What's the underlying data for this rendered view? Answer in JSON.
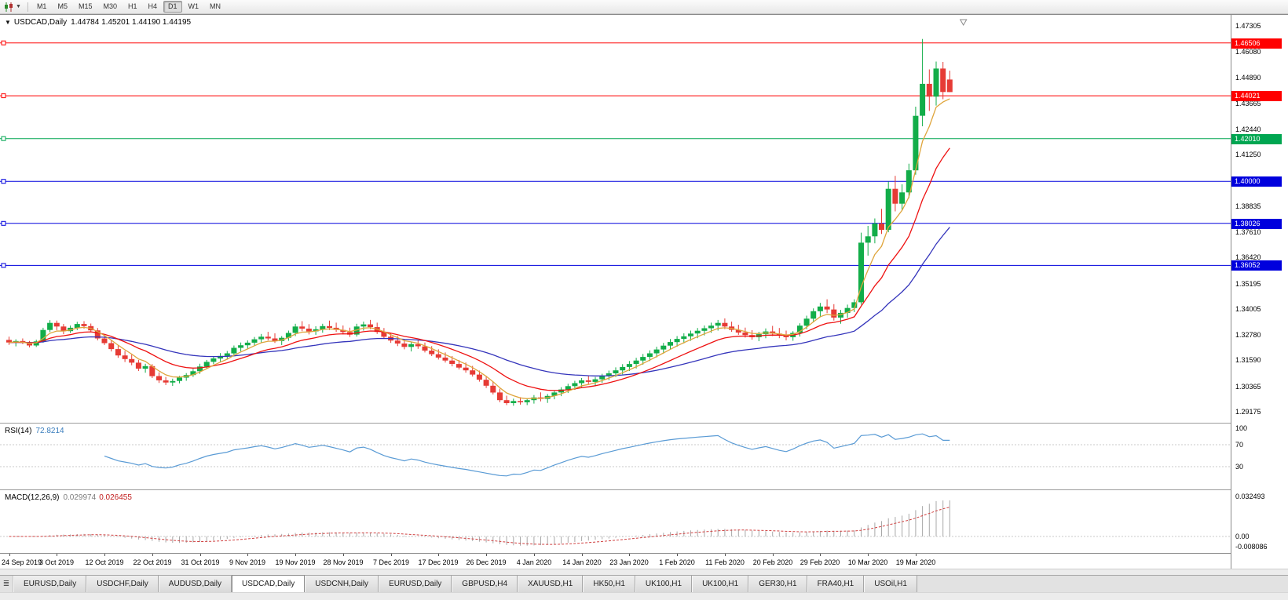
{
  "toolbar": {
    "timeframes": [
      "M1",
      "M5",
      "M15",
      "M30",
      "H1",
      "H4",
      "D1",
      "W1",
      "MN"
    ],
    "active_timeframe": "D1",
    "chart_type_icon": "candlestick-chart-icon",
    "dropdown_icon": "chevron-down-icon"
  },
  "chart": {
    "symbol_period": "USDCAD,Daily",
    "ohlc": "1.44784 1.45201 1.44190 1.44195"
  },
  "indicators": {
    "rsi": {
      "name": "RSI(14)",
      "value": "72.8214",
      "scale": [
        "100",
        "70",
        "30"
      ],
      "level_lines": [
        70,
        30
      ]
    },
    "macd": {
      "name": "MACD(12,26,9)",
      "value_main": "0.029974",
      "value_signal": "0.026455",
      "scale": [
        "0.032493",
        "0.00",
        "-0.008086"
      ]
    }
  },
  "tabbar": {
    "tabs": [
      "EURUSD,Daily",
      "USDCHF,Daily",
      "AUDUSD,Daily",
      "USDCAD,Daily",
      "USDCNH,Daily",
      "EURUSD,Daily",
      "GBPUSD,H4",
      "XAUUSD,H1",
      "HK50,H1",
      "UK100,H1",
      "UK100,H1",
      "GER30,H1",
      "FRA40,H1",
      "USOil,H1"
    ],
    "active_index": 3
  },
  "chart_data": {
    "type": "candlestick",
    "symbol": "USDCAD",
    "timeframe": "Daily",
    "current_bar": {
      "open": 1.44784,
      "high": 1.45201,
      "low": 1.4419,
      "close": 1.44195
    },
    "y_axis": {
      "min": 1.29175,
      "max": 1.47305,
      "tick_labels": [
        "1.47305",
        "1.46080",
        "1.44890",
        "1.43665",
        "1.42440",
        "1.41250",
        "1.38835",
        "1.37610",
        "1.36420",
        "1.35195",
        "1.34005",
        "1.32780",
        "1.31590",
        "1.30365",
        "1.29175"
      ]
    },
    "x_labels": [
      "24 Sep 2019",
      "3 Oct 2019",
      "12 Oct 2019",
      "22 Oct 2019",
      "31 Oct 2019",
      "9 Nov 2019",
      "19 Nov 2019",
      "28 Nov 2019",
      "7 Dec 2019",
      "17 Dec 2019",
      "26 Dec 2019",
      "4 Jan 2020",
      "14 Jan 2020",
      "23 Jan 2020",
      "1 Feb 2020",
      "11 Feb 2020",
      "20 Feb 2020",
      "29 Feb 2020",
      "10 Mar 2020",
      "19 Mar 2020"
    ],
    "label_every_n_bars": 7,
    "levels": [
      {
        "price": 1.46506,
        "label": "1.46506",
        "color": "#ff0000"
      },
      {
        "price": 1.44021,
        "label": "1.44021",
        "color": "#ff0000"
      },
      {
        "price": 1.4201,
        "label": "1.42010",
        "color": "#00a651"
      },
      {
        "price": 1.4,
        "label": "1.40000",
        "color": "#0000dd"
      },
      {
        "price": 1.38026,
        "label": "1.38026",
        "color": "#0000dd"
      },
      {
        "price": 1.36052,
        "label": "1.36052",
        "color": "#0000dd"
      }
    ],
    "moving_averages": [
      {
        "name": "fast",
        "period": 5,
        "color": "#dfa53c"
      },
      {
        "name": "mid",
        "period": 13,
        "color": "#ee1111"
      },
      {
        "name": "slow",
        "period": 34,
        "color": "#3434bb"
      }
    ],
    "colors": {
      "up": "#12ad49",
      "down": "#e63b35",
      "rsi_line": "#5a9bd5",
      "macd_histogram": "#a8a8a8",
      "macd_signal": "#d04040",
      "grid_dash": "#c9c9c9"
    },
    "candles": [
      [
        1.3255,
        1.327,
        1.3232,
        1.3243
      ],
      [
        1.3243,
        1.3258,
        1.3225,
        1.325
      ],
      [
        1.325,
        1.3262,
        1.3236,
        1.3241
      ],
      [
        1.3241,
        1.325,
        1.322,
        1.3229
      ],
      [
        1.3229,
        1.3256,
        1.3222,
        1.3248
      ],
      [
        1.3248,
        1.3312,
        1.3242,
        1.3302
      ],
      [
        1.3302,
        1.3348,
        1.3292,
        1.3335
      ],
      [
        1.3335,
        1.3346,
        1.3301,
        1.3318
      ],
      [
        1.3318,
        1.333,
        1.3282,
        1.3296
      ],
      [
        1.3296,
        1.3323,
        1.3288,
        1.3312
      ],
      [
        1.3312,
        1.334,
        1.3301,
        1.333
      ],
      [
        1.333,
        1.3343,
        1.3308,
        1.332
      ],
      [
        1.332,
        1.3332,
        1.3291,
        1.33
      ],
      [
        1.33,
        1.3311,
        1.3253,
        1.3262
      ],
      [
        1.3262,
        1.3278,
        1.3231,
        1.324
      ],
      [
        1.324,
        1.3253,
        1.3201,
        1.3212
      ],
      [
        1.3212,
        1.3229,
        1.3171,
        1.3182
      ],
      [
        1.3182,
        1.3203,
        1.3151,
        1.3165
      ],
      [
        1.3165,
        1.3186,
        1.3136,
        1.3148
      ],
      [
        1.3148,
        1.3161,
        1.3109,
        1.312
      ],
      [
        1.312,
        1.3143,
        1.3101,
        1.3132
      ],
      [
        1.3132,
        1.3141,
        1.3076,
        1.3085
      ],
      [
        1.3085,
        1.3103,
        1.3053,
        1.3065
      ],
      [
        1.3065,
        1.3081,
        1.3043,
        1.3055
      ],
      [
        1.3055,
        1.3073,
        1.3039,
        1.3062
      ],
      [
        1.3062,
        1.3086,
        1.3051,
        1.3078
      ],
      [
        1.3078,
        1.3099,
        1.3063,
        1.309
      ],
      [
        1.309,
        1.3119,
        1.3081,
        1.3108
      ],
      [
        1.3108,
        1.3143,
        1.3096,
        1.313
      ],
      [
        1.313,
        1.3161,
        1.3119,
        1.3152
      ],
      [
        1.3152,
        1.3179,
        1.3141,
        1.3168
      ],
      [
        1.3168,
        1.3193,
        1.3153,
        1.318
      ],
      [
        1.318,
        1.3203,
        1.3163,
        1.3192
      ],
      [
        1.3192,
        1.3229,
        1.3181,
        1.3218
      ],
      [
        1.3218,
        1.3243,
        1.3201,
        1.323
      ],
      [
        1.323,
        1.3253,
        1.3213,
        1.3242
      ],
      [
        1.3242,
        1.3269,
        1.3226,
        1.3258
      ],
      [
        1.3258,
        1.3283,
        1.3241,
        1.327
      ],
      [
        1.327,
        1.3293,
        1.3253,
        1.3262
      ],
      [
        1.3262,
        1.3286,
        1.3241,
        1.325
      ],
      [
        1.325,
        1.3273,
        1.3231,
        1.3265
      ],
      [
        1.3265,
        1.3299,
        1.3251,
        1.3288
      ],
      [
        1.3288,
        1.3331,
        1.3273,
        1.3318
      ],
      [
        1.3318,
        1.3343,
        1.3296,
        1.3308
      ],
      [
        1.3308,
        1.3329,
        1.3281,
        1.3295
      ],
      [
        1.3295,
        1.3319,
        1.3279,
        1.3305
      ],
      [
        1.3305,
        1.3331,
        1.3289,
        1.332
      ],
      [
        1.332,
        1.3346,
        1.3301,
        1.3312
      ],
      [
        1.3312,
        1.3336,
        1.3293,
        1.3302
      ],
      [
        1.3302,
        1.3323,
        1.3281,
        1.3292
      ],
      [
        1.3292,
        1.3313,
        1.3269,
        1.328
      ],
      [
        1.328,
        1.3331,
        1.3271,
        1.3318
      ],
      [
        1.3318,
        1.3341,
        1.3299,
        1.3328
      ],
      [
        1.3328,
        1.3349,
        1.3306,
        1.3315
      ],
      [
        1.3315,
        1.3336,
        1.3283,
        1.3292
      ],
      [
        1.3292,
        1.3311,
        1.3261,
        1.327
      ],
      [
        1.327,
        1.3289,
        1.3241,
        1.3252
      ],
      [
        1.3252,
        1.3273,
        1.3226,
        1.3238
      ],
      [
        1.3238,
        1.3259,
        1.3211,
        1.3222
      ],
      [
        1.3222,
        1.3246,
        1.3201,
        1.3235
      ],
      [
        1.3235,
        1.3256,
        1.3213,
        1.3225
      ],
      [
        1.3225,
        1.3243,
        1.3196,
        1.3205
      ],
      [
        1.3205,
        1.3226,
        1.3179,
        1.3188
      ],
      [
        1.3188,
        1.3211,
        1.3163,
        1.3172
      ],
      [
        1.3172,
        1.3196,
        1.3149,
        1.3158
      ],
      [
        1.3158,
        1.3179,
        1.3131,
        1.3142
      ],
      [
        1.3142,
        1.3161,
        1.3116,
        1.3125
      ],
      [
        1.3125,
        1.3149,
        1.3101,
        1.3112
      ],
      [
        1.3112,
        1.3133,
        1.3083,
        1.3092
      ],
      [
        1.3092,
        1.3111,
        1.3059,
        1.3068
      ],
      [
        1.3068,
        1.3086,
        1.3029,
        1.304
      ],
      [
        1.304,
        1.3059,
        1.2999,
        1.3008
      ],
      [
        1.3008,
        1.3026,
        1.2963,
        1.2972
      ],
      [
        1.2972,
        1.2993,
        1.2949,
        1.2958
      ],
      [
        1.2958,
        1.2979,
        1.2946,
        1.2968
      ],
      [
        1.2968,
        1.2986,
        1.2951,
        1.2962
      ],
      [
        1.2962,
        1.2981,
        1.2949,
        1.2972
      ],
      [
        1.2972,
        1.2996,
        1.2956,
        1.2985
      ],
      [
        1.2985,
        1.3009,
        1.2966,
        1.2978
      ],
      [
        1.2978,
        1.3001,
        1.2959,
        1.2992
      ],
      [
        1.2992,
        1.3019,
        1.2976,
        1.3008
      ],
      [
        1.3008,
        1.3033,
        1.2991,
        1.3022
      ],
      [
        1.3022,
        1.3049,
        1.3006,
        1.3038
      ],
      [
        1.3038,
        1.3063,
        1.3021,
        1.3052
      ],
      [
        1.3052,
        1.3076,
        1.3033,
        1.3065
      ],
      [
        1.3065,
        1.3089,
        1.3046,
        1.3058
      ],
      [
        1.3058,
        1.3081,
        1.3039,
        1.307
      ],
      [
        1.307,
        1.3096,
        1.3053,
        1.3085
      ],
      [
        1.3085,
        1.3111,
        1.3066,
        1.3098
      ],
      [
        1.3098,
        1.3126,
        1.3081,
        1.3112
      ],
      [
        1.3112,
        1.3141,
        1.3093,
        1.3128
      ],
      [
        1.3128,
        1.3156,
        1.3109,
        1.3142
      ],
      [
        1.3142,
        1.3171,
        1.3121,
        1.3158
      ],
      [
        1.3158,
        1.3189,
        1.3139,
        1.3175
      ],
      [
        1.3175,
        1.3206,
        1.3156,
        1.3192
      ],
      [
        1.3192,
        1.3223,
        1.3173,
        1.321
      ],
      [
        1.321,
        1.3241,
        1.3191,
        1.3228
      ],
      [
        1.3228,
        1.3259,
        1.3209,
        1.3245
      ],
      [
        1.3245,
        1.3273,
        1.3223,
        1.326
      ],
      [
        1.326,
        1.3286,
        1.3239,
        1.3272
      ],
      [
        1.3272,
        1.3299,
        1.3251,
        1.3285
      ],
      [
        1.3285,
        1.3311,
        1.3263,
        1.3298
      ],
      [
        1.3298,
        1.3323,
        1.3276,
        1.331
      ],
      [
        1.331,
        1.3336,
        1.3289,
        1.3322
      ],
      [
        1.3322,
        1.3349,
        1.3299,
        1.3335
      ],
      [
        1.3335,
        1.3356,
        1.3306,
        1.3318
      ],
      [
        1.3318,
        1.3341,
        1.3293,
        1.3302
      ],
      [
        1.3302,
        1.3326,
        1.3279,
        1.329
      ],
      [
        1.329,
        1.3313,
        1.3266,
        1.3278
      ],
      [
        1.3278,
        1.3301,
        1.3256,
        1.3268
      ],
      [
        1.3268,
        1.3293,
        1.3249,
        1.3282
      ],
      [
        1.3282,
        1.3309,
        1.3263,
        1.3295
      ],
      [
        1.3295,
        1.3321,
        1.3273,
        1.3285
      ],
      [
        1.3285,
        1.3311,
        1.3263,
        1.3275
      ],
      [
        1.3275,
        1.3299,
        1.3253,
        1.3268
      ],
      [
        1.3268,
        1.3296,
        1.3251,
        1.3288
      ],
      [
        1.3288,
        1.3333,
        1.3271,
        1.3322
      ],
      [
        1.3322,
        1.3369,
        1.3306,
        1.3355
      ],
      [
        1.3355,
        1.3403,
        1.3339,
        1.339
      ],
      [
        1.339,
        1.3429,
        1.3361,
        1.3412
      ],
      [
        1.3412,
        1.3446,
        1.3381,
        1.3398
      ],
      [
        1.3398,
        1.3423,
        1.3346,
        1.336
      ],
      [
        1.336,
        1.3396,
        1.3331,
        1.3382
      ],
      [
        1.3382,
        1.3421,
        1.3359,
        1.3405
      ],
      [
        1.3405,
        1.3446,
        1.3386,
        1.3432
      ],
      [
        1.3432,
        1.3759,
        1.3421,
        1.3712
      ],
      [
        1.3712,
        1.3791,
        1.3651,
        1.3742
      ],
      [
        1.3742,
        1.3826,
        1.3709,
        1.3802
      ],
      [
        1.3802,
        1.3871,
        1.3753,
        1.3772
      ],
      [
        1.3772,
        1.3999,
        1.3761,
        1.3965
      ],
      [
        1.3965,
        1.4026,
        1.3859,
        1.3895
      ],
      [
        1.3895,
        1.3986,
        1.3863,
        1.3948
      ],
      [
        1.3948,
        1.4083,
        1.3921,
        1.4052
      ],
      [
        1.4052,
        1.4351,
        1.4031,
        1.4308
      ],
      [
        1.4308,
        1.4669,
        1.4259,
        1.4458
      ],
      [
        1.4458,
        1.4526,
        1.4331,
        1.4398
      ],
      [
        1.4398,
        1.4563,
        1.4356,
        1.453
      ],
      [
        1.453,
        1.4561,
        1.4386,
        1.442
      ],
      [
        1.44784,
        1.45201,
        1.4419,
        1.44195
      ]
    ]
  }
}
